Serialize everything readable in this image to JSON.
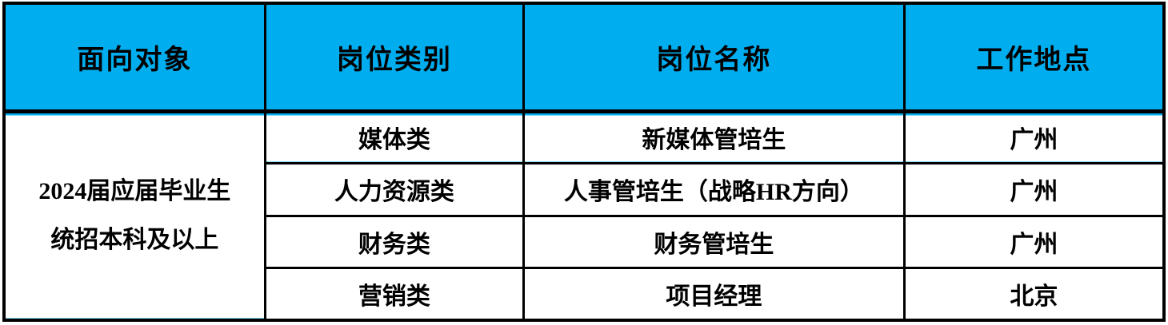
{
  "table": {
    "colors": {
      "header_bg": "#00AEEF",
      "border": "#000000",
      "text": "#000000"
    },
    "columns": [
      {
        "label": "面向对象"
      },
      {
        "label": "岗位类别"
      },
      {
        "label": "岗位名称"
      },
      {
        "label": "工作地点"
      }
    ],
    "audience": {
      "line1": "2024届应届毕业生",
      "line2": "统招本科及以上"
    },
    "rows": [
      {
        "category": "媒体类",
        "title": "新媒体管培生",
        "location": "广州"
      },
      {
        "category": "人力资源类",
        "title": "人事管培生（战略HR方向）",
        "location": "广州"
      },
      {
        "category": "财务类",
        "title": "财务管培生",
        "location": "广州"
      },
      {
        "category": "营销类",
        "title": "项目经理",
        "location": "北京"
      }
    ]
  }
}
